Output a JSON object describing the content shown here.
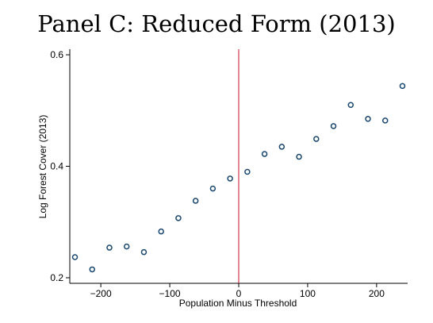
{
  "chart_data": {
    "type": "scatter",
    "title": "Panel C: Reduced Form (2013)",
    "xlabel": "Population Minus Threshold",
    "ylabel": "Log Forest Cover (2013)",
    "xlim": [
      -245,
      245
    ],
    "ylim": [
      0.19,
      0.61
    ],
    "xticks": [
      -200,
      -100,
      0,
      100,
      200
    ],
    "xtick_labels": [
      "−200",
      "−100",
      "0",
      "100",
      "200"
    ],
    "yticks": [
      0.2,
      0.4,
      0.6
    ],
    "ytick_labels": [
      "0.2",
      "0.4",
      "0.6"
    ],
    "cutoff": 0,
    "grid": false,
    "colors": {
      "marker": "#1a476f",
      "cutoff_line": "#c8102e",
      "axis": "#000000"
    },
    "series": [
      {
        "x": [
          -237.5,
          -212.5,
          -187.5,
          -162.5,
          -137.5,
          -112.5,
          -87.5,
          -62.5,
          -37.5,
          -12.5,
          12.5,
          37.5,
          62.5,
          87.5,
          112.5,
          137.5,
          162.5,
          187.5,
          212.5,
          237.5
        ],
        "y": [
          0.237,
          0.215,
          0.254,
          0.256,
          0.246,
          0.283,
          0.307,
          0.338,
          0.36,
          0.378,
          0.39,
          0.422,
          0.435,
          0.417,
          0.449,
          0.472,
          0.51,
          0.485,
          0.482,
          0.544
        ]
      }
    ]
  }
}
